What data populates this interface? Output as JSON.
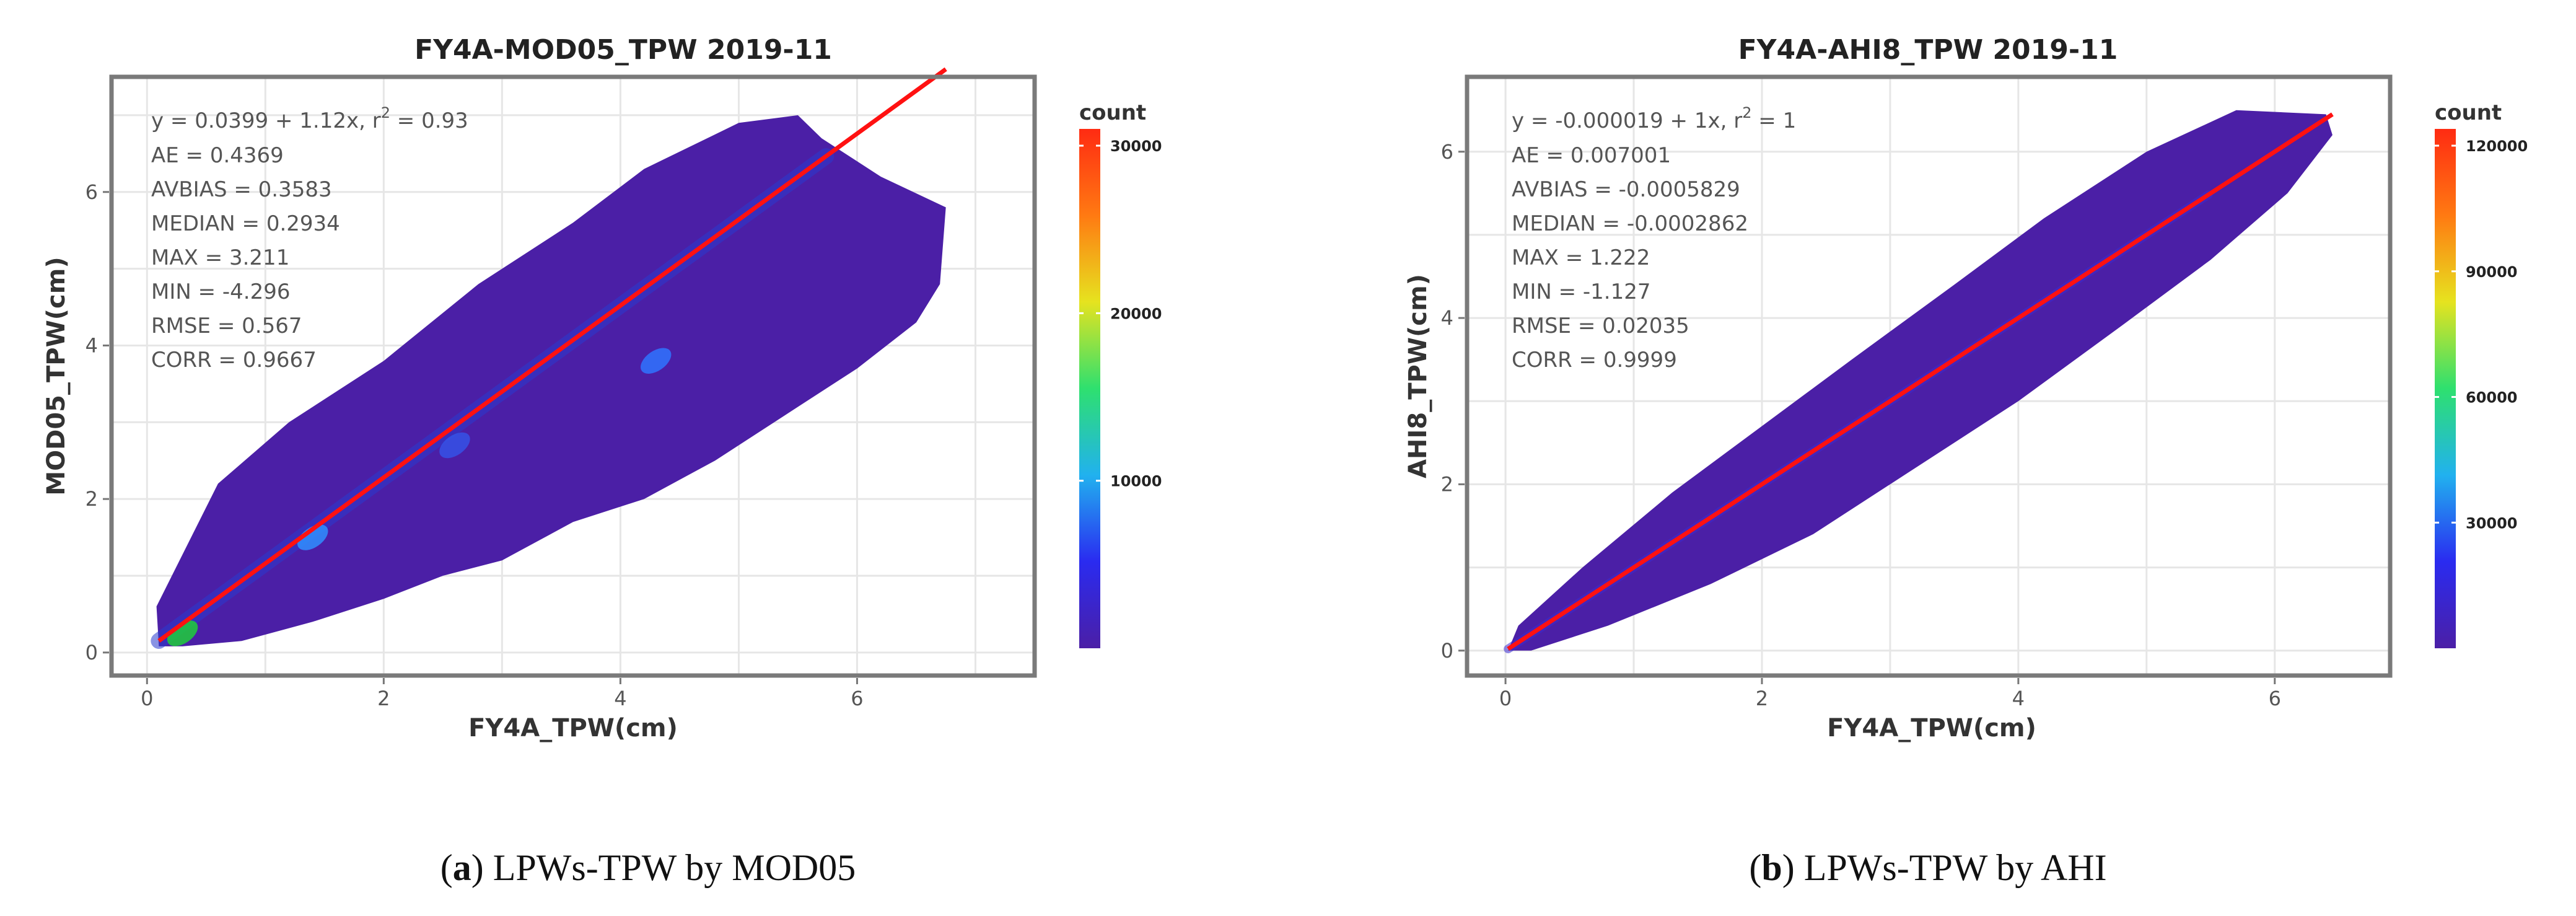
{
  "chart_data": [
    {
      "type": "heatmap",
      "title": "FY4A-MOD05_TPW 2019-11",
      "xlabel": "FY4A_TPW(cm)",
      "ylabel": "MOD05_TPW(cm)",
      "xlim": [
        -0.3,
        7.5
      ],
      "ylim": [
        -0.3,
        7.5
      ],
      "xticks": [
        0,
        2,
        4,
        6
      ],
      "yticks": [
        0,
        2,
        4,
        6
      ],
      "xtick_labels": [
        "0",
        "2",
        "4",
        "6"
      ],
      "ytick_labels": [
        "0",
        "2",
        "4",
        "6"
      ],
      "fit": {
        "intercept": 0.0399,
        "slope": 1.12,
        "r2": 0.93,
        "x_range": [
          0.1,
          6.75
        ]
      },
      "equation_text": "y = 0.0399 + 1.12x,  r",
      "r2_text": " = 0.93",
      "superscript": "2",
      "stats": [
        "AE = 0.4369",
        "AVBIAS = 0.3583",
        "MEDIAN = 0.2934",
        "MAX = 3.211",
        "MIN = -4.296",
        "RMSE = 0.567",
        "CORR = 0.9667"
      ],
      "cloud_outline": [
        [
          0.1,
          0.08
        ],
        [
          0.08,
          0.6
        ],
        [
          0.6,
          2.2
        ],
        [
          1.2,
          3.0
        ],
        [
          2.0,
          3.8
        ],
        [
          2.8,
          4.8
        ],
        [
          3.6,
          5.6
        ],
        [
          4.2,
          6.3
        ],
        [
          5.0,
          6.9
        ],
        [
          5.5,
          7.0
        ],
        [
          5.7,
          6.7
        ],
        [
          6.2,
          6.2
        ],
        [
          6.75,
          5.8
        ],
        [
          6.7,
          4.8
        ],
        [
          6.5,
          4.3
        ],
        [
          6.0,
          3.7
        ],
        [
          5.5,
          3.2
        ],
        [
          4.8,
          2.5
        ],
        [
          4.2,
          2.0
        ],
        [
          3.6,
          1.7
        ],
        [
          3.0,
          1.2
        ],
        [
          2.5,
          1.0
        ],
        [
          2.0,
          0.7
        ],
        [
          1.4,
          0.4
        ],
        [
          0.8,
          0.15
        ],
        [
          0.3,
          0.08
        ]
      ],
      "hot_spots": [
        {
          "x": 0.3,
          "y": 0.25,
          "color": "#1fcf3a"
        },
        {
          "x": 1.4,
          "y": 1.5,
          "color": "#2f8fff"
        },
        {
          "x": 2.6,
          "y": 2.7,
          "color": "#3552e6"
        },
        {
          "x": 4.3,
          "y": 3.8,
          "color": "#2f74ff"
        }
      ],
      "legend": {
        "title": "count",
        "min": 0,
        "max": 31000,
        "ticks": [
          10000,
          20000,
          30000
        ],
        "tick_labels": [
          "10000",
          "20000",
          "30000"
        ],
        "colors": [
          "#4b1fa6",
          "#2a2bf0",
          "#21b1ef",
          "#2ee06f",
          "#e6e31f",
          "#ff7a12",
          "#ff2b12"
        ]
      }
    },
    {
      "type": "heatmap",
      "title": "FY4A-AHI8_TPW 2019-11",
      "xlabel": "FY4A_TPW(cm)",
      "ylabel": "AHI8_TPW(cm)",
      "xlim": [
        -0.3,
        6.9
      ],
      "ylim": [
        -0.3,
        6.9
      ],
      "xticks": [
        0,
        2,
        4,
        6
      ],
      "yticks": [
        0,
        2,
        4,
        6
      ],
      "xtick_labels": [
        "0",
        "2",
        "4",
        "6"
      ],
      "ytick_labels": [
        "0",
        "2",
        "4",
        "6"
      ],
      "fit": {
        "intercept": -1.9e-05,
        "slope": 1,
        "r2": 1,
        "x_range": [
          0.02,
          6.45
        ]
      },
      "equation_text": "y = -0.000019 + 1x,  r",
      "r2_text": " = 1",
      "superscript": "2",
      "stats": [
        "AE = 0.007001",
        "AVBIAS = -0.0005829",
        "MEDIAN = -0.0002862",
        "MAX = 1.222",
        "MIN = -1.127",
        "RMSE = 0.02035",
        "CORR = 0.9999"
      ],
      "cloud_outline": [
        [
          0.02,
          0.0
        ],
        [
          0.1,
          0.3
        ],
        [
          0.6,
          1.0
        ],
        [
          1.3,
          1.9
        ],
        [
          2.0,
          2.7
        ],
        [
          2.7,
          3.5
        ],
        [
          3.5,
          4.4
        ],
        [
          4.2,
          5.2
        ],
        [
          5.0,
          6.0
        ],
        [
          5.7,
          6.5
        ],
        [
          6.4,
          6.45
        ],
        [
          6.45,
          6.2
        ],
        [
          6.1,
          5.5
        ],
        [
          5.5,
          4.7
        ],
        [
          4.8,
          3.9
        ],
        [
          4.0,
          3.0
        ],
        [
          3.2,
          2.2
        ],
        [
          2.4,
          1.4
        ],
        [
          1.6,
          0.8
        ],
        [
          0.8,
          0.3
        ],
        [
          0.2,
          0.0
        ]
      ],
      "hot_spots": [],
      "legend": {
        "title": "count",
        "min": 0,
        "max": 124000,
        "ticks": [
          30000,
          60000,
          90000,
          120000
        ],
        "tick_labels": [
          "30000",
          "60000",
          "90000",
          "120000"
        ],
        "colors": [
          "#4b1fa6",
          "#2a2bf0",
          "#21b1ef",
          "#2ee06f",
          "#e6e31f",
          "#ff7a12",
          "#ff2b12"
        ]
      }
    }
  ],
  "captions": [
    {
      "label": "a",
      "text": ") LPWs-TPW by MOD05",
      "open": "("
    },
    {
      "label": "b",
      "text": ") LPWs-TPW by AHI",
      "open": "("
    }
  ]
}
